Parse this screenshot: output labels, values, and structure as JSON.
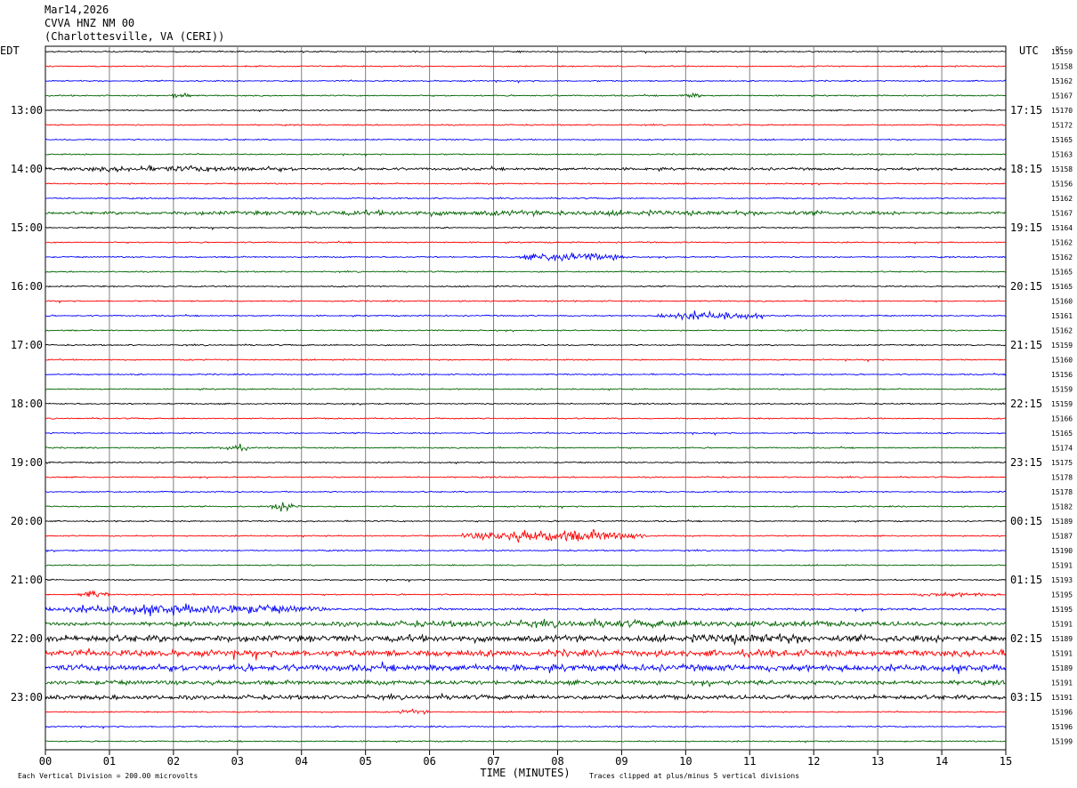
{
  "header": {
    "date": "Mar14,2026",
    "station": "CVVA HNZ NM 00",
    "location": "(Charlottesville, VA (CERI))"
  },
  "labels": {
    "left_zone": "EDT",
    "right_zone": "UTC",
    "dc": "DC",
    "xlabel": "TIME (MINUTES)",
    "scale_note": "Each Vertical Division =  200.00 microvolts",
    "clip_note": "Traces clipped at plus/minus 5 vertical divisions"
  },
  "colors": {
    "trace_cycle": [
      "#000000",
      "#ff0000",
      "#0000ff",
      "#006400"
    ],
    "grid": "#808080"
  },
  "chart_data": {
    "type": "line",
    "title": "CVVA HNZ NM 00",
    "xlabel": "TIME (MINUTES)",
    "xlim": [
      0,
      15
    ],
    "x_ticks": [
      "00",
      "01",
      "02",
      "03",
      "04",
      "05",
      "06",
      "07",
      "08",
      "09",
      "10",
      "11",
      "12",
      "13",
      "14",
      "15"
    ],
    "left_hour_labels": [
      {
        "row": 4,
        "label": "13:00"
      },
      {
        "row": 8,
        "label": "14:00"
      },
      {
        "row": 12,
        "label": "15:00"
      },
      {
        "row": 16,
        "label": "16:00"
      },
      {
        "row": 20,
        "label": "17:00"
      },
      {
        "row": 24,
        "label": "18:00"
      },
      {
        "row": 28,
        "label": "19:00"
      },
      {
        "row": 32,
        "label": "20:00"
      },
      {
        "row": 36,
        "label": "21:00"
      },
      {
        "row": 40,
        "label": "22:00"
      },
      {
        "row": 44,
        "label": "23:00"
      }
    ],
    "right_hour_labels": [
      {
        "row": 4,
        "label": "17:15"
      },
      {
        "row": 8,
        "label": "18:15"
      },
      {
        "row": 12,
        "label": "19:15"
      },
      {
        "row": 16,
        "label": "20:15"
      },
      {
        "row": 20,
        "label": "21:15"
      },
      {
        "row": 24,
        "label": "22:15"
      },
      {
        "row": 28,
        "label": "23:15"
      },
      {
        "row": 32,
        "label": "00:15"
      },
      {
        "row": 36,
        "label": "01:15"
      },
      {
        "row": 40,
        "label": "02:15"
      },
      {
        "row": 44,
        "label": "03:15"
      }
    ],
    "dc_offsets": [
      "15159",
      "15158",
      "15162",
      "15167",
      "15170",
      "15172",
      "15165",
      "15163",
      "15158",
      "15156",
      "15162",
      "15167",
      "15164",
      "15162",
      "15162",
      "15165",
      "15165",
      "15160",
      "15161",
      "15162",
      "15159",
      "15160",
      "15156",
      "15159",
      "15159",
      "15166",
      "15165",
      "15174",
      "15175",
      "15178",
      "15178",
      "15182",
      "15189",
      "15187",
      "15190",
      "15191",
      "15193",
      "15195",
      "15195",
      "15191",
      "15189",
      "15191",
      "15189",
      "15191",
      "15191",
      "15196",
      "15196",
      "15199"
    ],
    "noise_levels": [
      0.3,
      0.3,
      0.3,
      0.3,
      0.3,
      0.3,
      0.3,
      0.3,
      0.6,
      0.3,
      0.3,
      0.6,
      0.3,
      0.3,
      0.3,
      0.3,
      0.3,
      0.3,
      0.3,
      0.3,
      0.3,
      0.3,
      0.3,
      0.3,
      0.3,
      0.3,
      0.3,
      0.3,
      0.3,
      0.3,
      0.3,
      0.3,
      0.3,
      0.3,
      0.3,
      0.3,
      0.3,
      0.3,
      0.5,
      0.9,
      1.5,
      1.5,
      1.5,
      1.0,
      1.0,
      0.3,
      0.3,
      0.3
    ],
    "events": [
      {
        "row": 3,
        "start": 1.9,
        "end": 2.3,
        "amplitude": 1.6
      },
      {
        "row": 3,
        "start": 9.9,
        "end": 10.3,
        "amplitude": 1.2
      },
      {
        "row": 8,
        "start": 0.0,
        "end": 4.2,
        "amplitude": 1.4
      },
      {
        "row": 11,
        "start": 0.0,
        "end": 15.0,
        "amplitude": 1.2
      },
      {
        "row": 14,
        "start": 7.4,
        "end": 9.1,
        "amplitude": 2.0
      },
      {
        "row": 18,
        "start": 9.5,
        "end": 11.2,
        "amplitude": 2.0
      },
      {
        "row": 27,
        "start": 2.7,
        "end": 3.2,
        "amplitude": 1.6
      },
      {
        "row": 31,
        "start": 3.5,
        "end": 4.0,
        "amplitude": 2.2
      },
      {
        "row": 33,
        "start": 6.5,
        "end": 9.4,
        "amplitude": 2.8
      },
      {
        "row": 37,
        "start": 0.5,
        "end": 1.0,
        "amplitude": 1.8
      },
      {
        "row": 37,
        "start": 13.5,
        "end": 15.0,
        "amplitude": 1.0
      },
      {
        "row": 38,
        "start": 0.0,
        "end": 4.4,
        "amplitude": 2.4
      },
      {
        "row": 39,
        "start": 3.0,
        "end": 15.0,
        "amplitude": 1.6
      },
      {
        "row": 40,
        "start": 9.7,
        "end": 12.5,
        "amplitude": 2.4
      },
      {
        "row": 45,
        "start": 5.5,
        "end": 6.0,
        "amplitude": 1.2
      }
    ]
  }
}
